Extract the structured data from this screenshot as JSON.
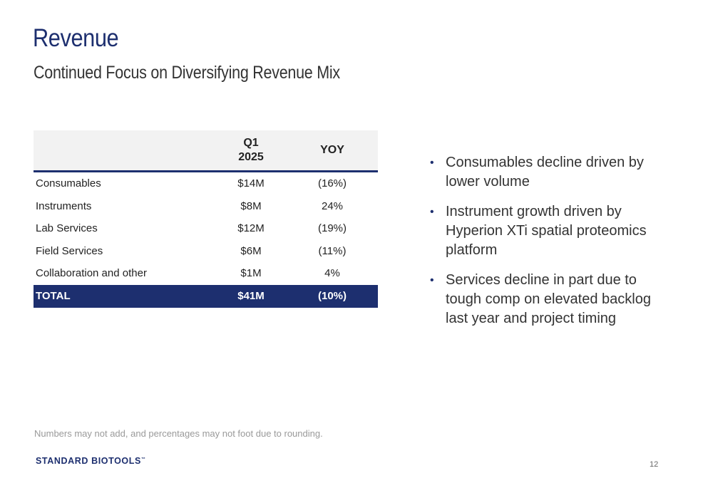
{
  "slide": {
    "title": "Revenue",
    "subtitle": "Continued Focus on Diversifying Revenue Mix",
    "footnote": "Numbers may not add, and percentages may not foot due to rounding.",
    "logo_text": "STANDARD BIOTOOLS",
    "logo_tm": "™",
    "page_number": "12"
  },
  "table": {
    "headers": {
      "period_line1": "Q1",
      "period_line2": "2025",
      "yoy": "YOY"
    },
    "rows": [
      {
        "label": "Consumables",
        "q1": "$14M",
        "yoy": "(16%)"
      },
      {
        "label": "Instruments",
        "q1": "$8M",
        "yoy": "24%"
      },
      {
        "label": "Lab Services",
        "q1": "$12M",
        "yoy": "(19%)"
      },
      {
        "label": "Field Services",
        "q1": "$6M",
        "yoy": "(11%)"
      },
      {
        "label": "Collaboration and other",
        "q1": "$1M",
        "yoy": "4%"
      }
    ],
    "total": {
      "label": "TOTAL",
      "q1": "$41M",
      "yoy": "(10%)"
    }
  },
  "bullets": [
    "Consumables decline driven by lower volume",
    "Instrument growth driven by Hyperion XTi spatial proteomics platform",
    "Services decline in part due to tough comp on elevated backlog last year and project timing"
  ],
  "bullet_glyph": "•",
  "colors": {
    "brand_navy": "#1d2f6f",
    "header_bg": "#f2f2f2",
    "footnote_gray": "#9a9a9a"
  }
}
